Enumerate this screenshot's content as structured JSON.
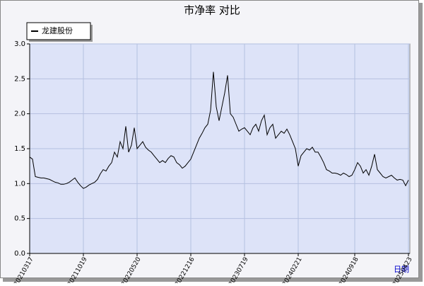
{
  "chart_data": {
    "type": "line",
    "title": "市净率  对比",
    "x_label": "日期",
    "categories": [
      "20210317",
      null,
      null,
      null,
      null,
      null,
      null,
      null,
      null,
      null,
      null,
      null,
      null,
      null,
      null,
      null,
      null,
      null,
      null,
      "20211019",
      null,
      null,
      null,
      null,
      null,
      null,
      null,
      null,
      null,
      null,
      null,
      null,
      null,
      null,
      null,
      null,
      null,
      null,
      "20220520",
      null,
      null,
      null,
      null,
      null,
      null,
      null,
      null,
      null,
      null,
      null,
      null,
      null,
      null,
      null,
      null,
      null,
      null,
      "20221216",
      null,
      null,
      null,
      null,
      null,
      null,
      null,
      null,
      null,
      null,
      null,
      null,
      null,
      null,
      null,
      null,
      null,
      null,
      "20230719",
      null,
      null,
      null,
      null,
      null,
      null,
      null,
      null,
      null,
      null,
      null,
      null,
      null,
      null,
      null,
      null,
      null,
      null,
      "20240221",
      null,
      null,
      null,
      null,
      null,
      null,
      null,
      null,
      null,
      null,
      null,
      null,
      null,
      null,
      null,
      null,
      null,
      null,
      null,
      "20240918",
      null,
      null,
      null,
      null,
      null,
      null,
      null,
      null,
      null,
      null,
      null,
      null,
      null,
      null,
      null,
      null,
      null,
      null,
      "20250423"
    ],
    "series": [
      {
        "name": "龙建股份",
        "color": "#000000",
        "values": [
          1.38,
          1.35,
          1.1,
          1.09,
          1.08,
          1.08,
          1.07,
          1.06,
          1.04,
          1.02,
          1.01,
          0.99,
          0.99,
          1.0,
          1.02,
          1.05,
          1.08,
          1.02,
          0.97,
          0.93,
          0.95,
          0.98,
          1.0,
          1.02,
          1.06,
          1.14,
          1.2,
          1.18,
          1.25,
          1.3,
          1.45,
          1.38,
          1.6,
          1.5,
          1.82,
          1.45,
          1.55,
          1.8,
          1.5,
          1.55,
          1.6,
          1.52,
          1.48,
          1.45,
          1.4,
          1.35,
          1.3,
          1.33,
          1.3,
          1.36,
          1.4,
          1.38,
          1.3,
          1.27,
          1.22,
          1.25,
          1.3,
          1.35,
          1.45,
          1.55,
          1.65,
          1.72,
          1.8,
          1.85,
          2.05,
          2.6,
          2.1,
          1.9,
          2.1,
          2.3,
          2.55,
          2.0,
          1.95,
          1.85,
          1.75,
          1.78,
          1.8,
          1.75,
          1.7,
          1.8,
          1.85,
          1.75,
          1.9,
          1.98,
          1.7,
          1.8,
          1.85,
          1.65,
          1.7,
          1.75,
          1.72,
          1.78,
          1.7,
          1.6,
          1.5,
          1.25,
          1.4,
          1.45,
          1.5,
          1.48,
          1.52,
          1.45,
          1.45,
          1.38,
          1.3,
          1.2,
          1.18,
          1.15,
          1.15,
          1.14,
          1.12,
          1.15,
          1.13,
          1.1,
          1.12,
          1.2,
          1.3,
          1.25,
          1.15,
          1.2,
          1.12,
          1.25,
          1.42,
          1.2,
          1.15,
          1.1,
          1.08,
          1.1,
          1.12,
          1.08,
          1.05,
          1.06,
          1.05,
          0.97,
          1.05
        ]
      }
    ],
    "ylim": [
      0,
      3
    ],
    "yticks": [
      {
        "value": 0,
        "label": "0.0"
      },
      0.5,
      {
        "value": 1,
        "label": "1.0"
      },
      1.5,
      {
        "value": 2,
        "label": "2.0"
      },
      2.5,
      {
        "value": 3,
        "label": "3.0"
      }
    ],
    "grid": true,
    "legend": "top-left",
    "background": "#dde3f8"
  }
}
